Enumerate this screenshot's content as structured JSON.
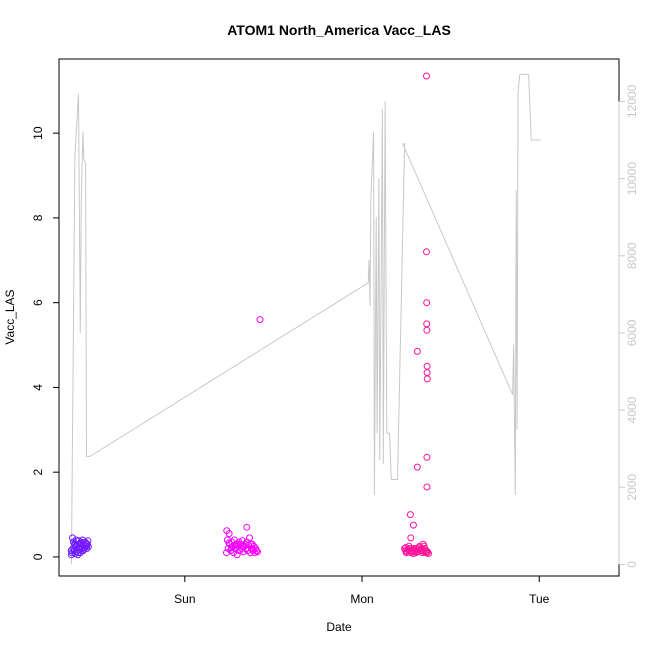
{
  "chart_data": {
    "type": "scatter",
    "title": "ATOM1 North_America Vacc_LAS",
    "xlabel": "Date",
    "ylabel": "Vacc_LAS",
    "x_unit": "days",
    "xlim": [
      -0.21,
      2.95
    ],
    "ylim": [
      -0.45,
      11.75
    ],
    "x_ticks": [
      {
        "value": 0.5,
        "label": "Sun"
      },
      {
        "value": 1.5,
        "label": "Mon"
      },
      {
        "value": 2.5,
        "label": "Tue"
      }
    ],
    "y_ticks": [
      0,
      2,
      4,
      6,
      8,
      10
    ],
    "y2_ticks": [
      0,
      2000,
      4000,
      6000,
      8000,
      10000,
      12000
    ],
    "y2_lim": [
      -300,
      13100
    ],
    "grid": false,
    "legend": "none",
    "colors": {
      "line": "#c8c8c8",
      "axis": "#000000",
      "axis2": "#c8c8c8"
    },
    "series": [
      {
        "kind": "points",
        "color_start": "#6a1aff",
        "color_end": "#ff1493",
        "color_mid": "#ff00ff",
        "x": [
          -0.14,
          -0.137,
          -0.134,
          -0.131,
          -0.128,
          -0.125,
          -0.122,
          -0.119,
          -0.116,
          -0.113,
          -0.11,
          -0.107,
          -0.104,
          -0.101,
          -0.098,
          -0.095,
          -0.092,
          -0.089,
          -0.086,
          -0.083,
          -0.08,
          -0.077,
          -0.074,
          -0.071,
          -0.068,
          -0.065,
          -0.062,
          -0.059,
          -0.056,
          -0.053,
          -0.05,
          -0.047,
          -0.044,
          -0.141,
          -0.12,
          -0.1,
          -0.085,
          -0.07,
          -0.055,
          0.735,
          0.74,
          0.745,
          0.75,
          0.755,
          0.76,
          0.765,
          0.77,
          0.775,
          0.78,
          0.785,
          0.79,
          0.795,
          0.8,
          0.805,
          0.81,
          0.815,
          0.82,
          0.825,
          0.83,
          0.835,
          0.84,
          0.845,
          0.85,
          0.855,
          0.86,
          0.865,
          0.87,
          0.875,
          0.88,
          0.885,
          0.89,
          0.895,
          0.9,
          0.905,
          0.91,
          0.737,
          0.748,
          0.763,
          0.782,
          0.8,
          0.827,
          0.85,
          0.873,
          0.885,
          1.74,
          1.745,
          1.75,
          1.755,
          1.76,
          1.765,
          1.77,
          1.775,
          1.78,
          1.785,
          1.79,
          1.795,
          1.8,
          1.805,
          1.81,
          1.815,
          1.82,
          1.825,
          1.83,
          1.835,
          1.84,
          1.845,
          1.85,
          1.855,
          1.86,
          1.865,
          1.87,
          1.875,
          1.747,
          1.758,
          1.77,
          1.788,
          1.806,
          1.82,
          1.835,
          1.85,
          1.86,
          1.773,
          1.775,
          1.79,
          1.864,
          1.864,
          1.865,
          1.865,
          1.866,
          1.867,
          1.867,
          1.868,
          1.866,
          1.866,
          0.924
        ],
        "y": [
          0.05,
          0.1,
          0.45,
          0.2,
          0.35,
          0.15,
          0.3,
          0.08,
          0.25,
          0.4,
          0.12,
          0.3,
          0.05,
          0.22,
          0.38,
          0.18,
          0.3,
          0.1,
          0.35,
          0.25,
          0.2,
          0.4,
          0.15,
          0.3,
          0.28,
          0.22,
          0.35,
          0.25,
          0.32,
          0.2,
          0.3,
          0.38,
          0.24,
          0.15,
          0.28,
          0.1,
          0.32,
          0.18,
          0.26,
          0.1,
          0.4,
          0.2,
          0.55,
          0.3,
          0.15,
          0.35,
          0.25,
          0.1,
          0.4,
          0.2,
          0.3,
          0.05,
          0.25,
          0.35,
          0.15,
          0.3,
          0.2,
          0.38,
          0.12,
          0.25,
          0.3,
          0.2,
          0.35,
          0.15,
          0.28,
          0.45,
          0.1,
          0.2,
          0.3,
          0.15,
          0.25,
          0.1,
          0.2,
          0.15,
          0.12,
          0.62,
          0.33,
          0.22,
          0.28,
          0.3,
          0.24,
          0.7,
          0.3,
          0.18,
          0.2,
          0.15,
          0.1,
          0.12,
          0.18,
          0.25,
          0.2,
          0.1,
          0.15,
          0.12,
          0.08,
          0.2,
          0.15,
          0.1,
          0.12,
          0.18,
          0.22,
          0.25,
          0.15,
          0.2,
          0.1,
          0.3,
          0.25,
          0.2,
          0.15,
          0.1,
          0.12,
          0.08,
          0.22,
          0.17,
          0.14,
          0.18,
          0.2,
          0.13,
          0.16,
          0.12,
          0.1,
          1.0,
          0.45,
          0.75,
          11.35,
          7.2,
          6.0,
          5.5,
          5.35,
          4.5,
          4.35,
          4.2,
          2.35,
          1.65,
          5.6
        ],
        "extra_points": [
          {
            "x": 1.812,
            "y": 2.12
          },
          {
            "x": 1.812,
            "y": 4.85
          }
        ]
      },
      {
        "kind": "line",
        "axis": "right",
        "x": [
          -0.14,
          -0.12,
          -0.1,
          -0.09,
          -0.085,
          -0.075,
          -0.07,
          -0.06,
          -0.055,
          -0.05,
          -0.045,
          -0.035,
          1.535,
          1.54,
          1.545,
          1.55,
          1.565,
          1.57,
          1.58,
          1.585,
          1.595,
          1.6,
          1.615,
          1.62,
          1.63,
          1.64,
          1.65,
          1.655,
          1.665,
          1.67,
          1.68,
          1.685,
          1.69,
          1.7,
          1.74,
          1.73,
          2.35,
          2.355,
          2.365,
          2.37,
          2.375,
          2.38,
          2.39,
          2.395,
          2.41,
          2.415,
          2.42,
          2.43,
          2.44,
          2.455,
          2.46,
          2.47,
          2.48,
          2.49,
          2.5,
          2.51
        ],
        "y": [
          0,
          10600,
          12200,
          6000,
          9300,
          11200,
          10500,
          10400,
          2800,
          2800,
          2800,
          2800,
          7300,
          7900,
          6700,
          9500,
          11200,
          1800,
          9000,
          3400,
          10000,
          2700,
          11800,
          2600,
          12000,
          3400,
          3400,
          3400,
          2200,
          2200,
          2200,
          2200,
          2200,
          2200,
          10900,
          10900,
          4400,
          5700,
          1800,
          9700,
          3500,
          12200,
          12700,
          12700,
          12700,
          12700,
          12700,
          12700,
          12700,
          11000,
          11000,
          11000,
          11000,
          11000,
          11000,
          11000
        ]
      }
    ]
  }
}
